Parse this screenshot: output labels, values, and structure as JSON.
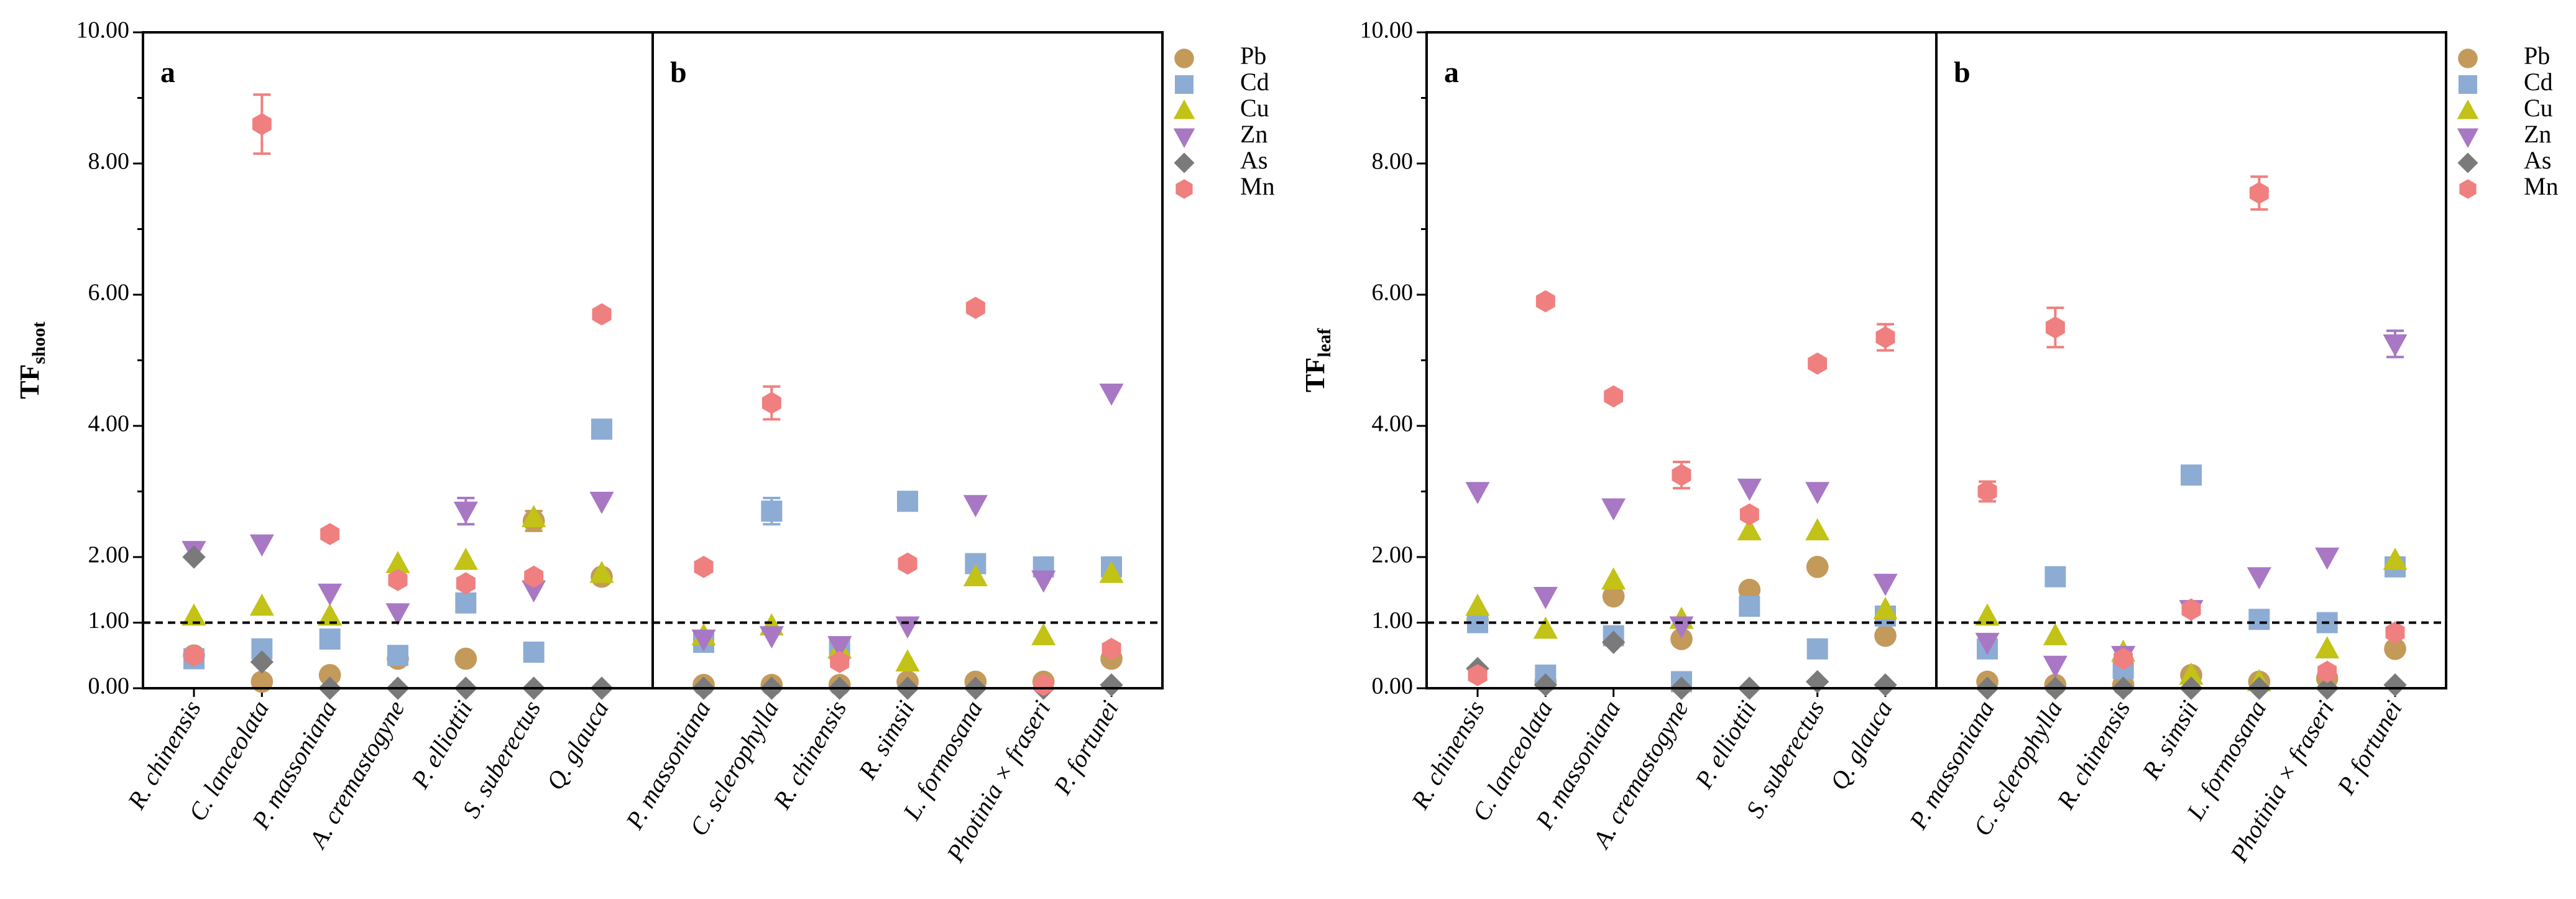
{
  "colors": {
    "Pb": "#c39a5a",
    "Cd": "#8cacd4",
    "Cu": "#c2c217",
    "Zn": "#a878c4",
    "As": "#7a7a7a",
    "Mn": "#f07f7f"
  },
  "chart_data": [
    {
      "type": "scatter",
      "ylabel_main": "TF",
      "ylabel_sub": "shoot",
      "ylim": [
        0,
        10
      ],
      "yticks": [
        "0.00",
        "1.00",
        "2.00",
        "4.00",
        "6.00",
        "8.00",
        "10.00"
      ],
      "reference_line": 1.0,
      "legend": [
        "Pb",
        "Cd",
        "Cu",
        "Zn",
        "As",
        "Mn"
      ],
      "panels": [
        {
          "label": "a",
          "categories": [
            "R. chinensis",
            "C. lanceolata",
            "P. massoniana",
            "A. cremastogyne",
            "P. elliottii",
            "S. suberectus",
            "Q. glauca"
          ],
          "series": [
            {
              "name": "Pb",
              "values": [
                0.5,
                0.1,
                0.2,
                0.45,
                0.45,
                2.55,
                1.7
              ],
              "errors": [
                0,
                0,
                0,
                0,
                0,
                0.15,
                0
              ]
            },
            {
              "name": "Cd",
              "values": [
                0.45,
                0.6,
                0.75,
                0.5,
                1.3,
                0.55,
                3.95
              ],
              "errors": [
                0,
                0,
                0,
                0,
                0,
                0,
                0
              ]
            },
            {
              "name": "Cu",
              "values": [
                1.1,
                1.25,
                1.1,
                1.9,
                1.95,
                2.6,
                1.75
              ],
              "errors": [
                0,
                0,
                0,
                0,
                0,
                0,
                0
              ]
            },
            {
              "name": "Zn",
              "values": [
                2.1,
                2.2,
                1.45,
                1.15,
                2.7,
                1.5,
                2.85
              ],
              "errors": [
                0,
                0,
                0,
                0,
                0.2,
                0,
                0
              ]
            },
            {
              "name": "As",
              "values": [
                2.0,
                0.4,
                0.0,
                0.0,
                0.0,
                0.0,
                0.0
              ],
              "errors": [
                0,
                0,
                0,
                0,
                0,
                0,
                0
              ]
            },
            {
              "name": "Mn",
              "values": [
                0.5,
                8.6,
                2.35,
                1.65,
                1.6,
                1.7,
                5.7
              ],
              "errors": [
                0,
                0.45,
                0,
                0,
                0,
                0,
                0
              ]
            }
          ]
        },
        {
          "label": "b",
          "categories": [
            "P. massoniana",
            "C. sclerophylla",
            "R. chinensis",
            "R. simsii",
            "L. formosana",
            "Photinia × fraseri",
            "P. fortunei"
          ],
          "series": [
            {
              "name": "Pb",
              "values": [
                0.05,
                0.05,
                0.05,
                0.1,
                0.1,
                0.1,
                0.45
              ],
              "errors": [
                0,
                0,
                0,
                0,
                0,
                0,
                0
              ]
            },
            {
              "name": "Cd",
              "values": [
                0.7,
                2.7,
                0.6,
                2.85,
                1.9,
                1.85,
                1.85
              ],
              "errors": [
                0,
                0.2,
                0,
                0,
                0,
                0,
                0
              ]
            },
            {
              "name": "Cu",
              "values": [
                0.8,
                0.95,
                0.6,
                0.4,
                1.7,
                0.8,
                1.75
              ],
              "errors": [
                0,
                0,
                0,
                0,
                0,
                0,
                0
              ]
            },
            {
              "name": "Zn",
              "values": [
                0.75,
                0.8,
                0.65,
                0.95,
                2.8,
                1.65,
                4.5
              ],
              "errors": [
                0,
                0,
                0,
                0,
                0,
                0,
                0
              ]
            },
            {
              "name": "As",
              "values": [
                0.0,
                0.0,
                0.0,
                0.0,
                0.0,
                0.0,
                0.05
              ],
              "errors": [
                0,
                0,
                0,
                0,
                0,
                0,
                0
              ]
            },
            {
              "name": "Mn",
              "values": [
                1.85,
                4.35,
                0.4,
                1.9,
                5.8,
                0.05,
                0.6
              ],
              "errors": [
                0,
                0.25,
                0,
                0,
                0,
                0,
                0
              ]
            }
          ]
        }
      ]
    },
    {
      "type": "scatter",
      "ylabel_main": "TF",
      "ylabel_sub": "leaf",
      "ylim": [
        0,
        10
      ],
      "yticks": [
        "0.00",
        "1.00",
        "2.00",
        "4.00",
        "6.00",
        "8.00",
        "10.00"
      ],
      "reference_line": 1.0,
      "legend": [
        "Pb",
        "Cd",
        "Cu",
        "Zn",
        "As",
        "Mn"
      ],
      "panels": [
        {
          "label": "a",
          "categories": [
            "R. chinensis",
            "C. lanceolata",
            "P. massoniana",
            "A. cremastogyne",
            "P. elliottii",
            "S. suberectus",
            "Q. glauca"
          ],
          "series": [
            {
              "name": "Pb",
              "values": [
                1.05,
                0.1,
                1.4,
                0.75,
                1.5,
                1.85,
                0.8
              ],
              "errors": [
                0,
                0,
                0,
                0,
                0,
                0,
                0
              ]
            },
            {
              "name": "Cd",
              "values": [
                1.0,
                0.2,
                0.8,
                0.1,
                1.25,
                0.6,
                1.1
              ],
              "errors": [
                0,
                0,
                0,
                0,
                0,
                0,
                0
              ]
            },
            {
              "name": "Cu",
              "values": [
                1.25,
                0.9,
                1.65,
                1.05,
                2.4,
                2.4,
                1.2
              ],
              "errors": [
                0,
                0,
                0,
                0,
                0,
                0,
                0
              ]
            },
            {
              "name": "Zn",
              "values": [
                3.0,
                1.4,
                2.75,
                0.95,
                3.05,
                3.0,
                1.6
              ],
              "errors": [
                0,
                0,
                0,
                0,
                0,
                0,
                0
              ]
            },
            {
              "name": "As",
              "values": [
                0.3,
                0.05,
                0.7,
                0.0,
                0.0,
                0.1,
                0.05
              ],
              "errors": [
                0,
                0,
                0,
                0,
                0,
                0,
                0
              ]
            },
            {
              "name": "Mn",
              "values": [
                0.2,
                5.9,
                4.45,
                3.25,
                2.65,
                4.95,
                5.35
              ],
              "errors": [
                0,
                0,
                0,
                0.2,
                0,
                0,
                0.2
              ]
            }
          ]
        },
        {
          "label": "b",
          "categories": [
            "P. massoniana",
            "C. sclerophylla",
            "R. chinensis",
            "R. simsii",
            "L. formosana",
            "Photinia × fraseri",
            "P. fortunei"
          ],
          "series": [
            {
              "name": "Pb",
              "values": [
                0.1,
                0.05,
                0.05,
                0.2,
                0.1,
                0.15,
                0.6
              ],
              "errors": [
                0,
                0,
                0,
                0,
                0,
                0,
                0
              ]
            },
            {
              "name": "Cd",
              "values": [
                0.6,
                1.7,
                0.3,
                3.25,
                1.05,
                1.0,
                1.85
              ],
              "errors": [
                0,
                0.1,
                0,
                0.1,
                0,
                0,
                0
              ]
            },
            {
              "name": "Cu",
              "values": [
                1.1,
                0.8,
                0.55,
                0.2,
                0.1,
                0.6,
                1.95
              ],
              "errors": [
                0,
                0,
                0,
                0,
                0,
                0,
                0
              ]
            },
            {
              "name": "Zn",
              "values": [
                0.7,
                0.35,
                0.5,
                1.2,
                1.7,
                2.0,
                5.25
              ],
              "errors": [
                0,
                0,
                0,
                0,
                0,
                0,
                0.2
              ]
            },
            {
              "name": "As",
              "values": [
                0.0,
                0.0,
                0.0,
                0.0,
                0.0,
                0.0,
                0.05
              ],
              "errors": [
                0,
                0,
                0,
                0,
                0,
                0,
                0
              ]
            },
            {
              "name": "Mn",
              "values": [
                3.0,
                5.5,
                0.45,
                1.2,
                7.55,
                0.25,
                0.85
              ],
              "errors": [
                0.15,
                0.3,
                0,
                0,
                0.25,
                0,
                0
              ]
            }
          ]
        }
      ]
    }
  ]
}
